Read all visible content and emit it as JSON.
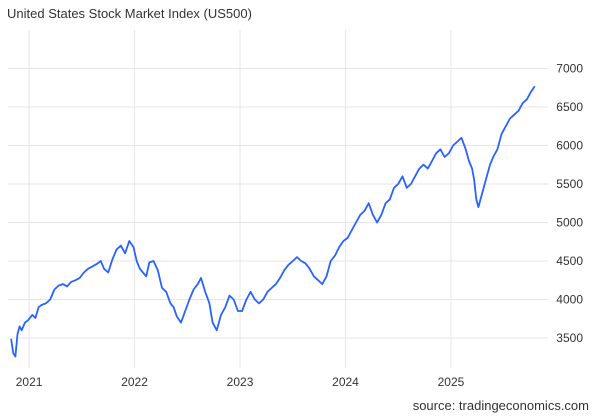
{
  "title": "United States Stock Market Index (US500)",
  "source": "source: tradingeconomics.com",
  "colors": {
    "line": "#2962ff",
    "grid": "#e6e6e6",
    "text": "#333333"
  },
  "chart_data": {
    "type": "line",
    "title": "United States Stock Market Index (US500)",
    "xlabel": "",
    "ylabel": "",
    "xlim": [
      2020.8,
      2025.92
    ],
    "ylim": [
      3110,
      7500
    ],
    "x_ticks": [
      2021,
      2022,
      2023,
      2024,
      2025
    ],
    "x_tick_labels": [
      "2021",
      "2022",
      "2023",
      "2024",
      "2025"
    ],
    "y_ticks": [
      3500,
      4000,
      4500,
      5000,
      5500,
      6000,
      6500,
      7000
    ],
    "y_tick_labels": [
      "3500",
      "4000",
      "4500",
      "5000",
      "5500",
      "6000",
      "6500",
      "7000"
    ],
    "y_axis_position": "right",
    "grid": true,
    "series": [
      {
        "x": [
          2020.83,
          2020.85,
          2020.87,
          2020.89,
          2020.91,
          2020.93,
          2020.96,
          2020.99,
          2021.03,
          2021.06,
          2021.09,
          2021.12,
          2021.16,
          2021.2,
          2021.24,
          2021.28,
          2021.32,
          2021.36,
          2021.4,
          2021.44,
          2021.48,
          2021.52,
          2021.56,
          2021.6,
          2021.64,
          2021.68,
          2021.71,
          2021.75,
          2021.79,
          2021.83,
          2021.87,
          2021.91,
          2021.95,
          2021.99,
          2022.02,
          2022.05,
          2022.08,
          2022.11,
          2022.14,
          2022.18,
          2022.22,
          2022.26,
          2022.3,
          2022.34,
          2022.37,
          2022.4,
          2022.44,
          2022.48,
          2022.52,
          2022.56,
          2022.6,
          2022.63,
          2022.67,
          2022.71,
          2022.74,
          2022.78,
          2022.82,
          2022.86,
          2022.9,
          2022.94,
          2022.98,
          2023.02,
          2023.06,
          2023.1,
          2023.14,
          2023.18,
          2023.22,
          2023.26,
          2023.3,
          2023.34,
          2023.38,
          2023.42,
          2023.46,
          2023.5,
          2023.54,
          2023.58,
          2023.62,
          2023.66,
          2023.7,
          2023.74,
          2023.78,
          2023.82,
          2023.86,
          2023.9,
          2023.94,
          2023.98,
          2024.02,
          2024.06,
          2024.1,
          2024.14,
          2024.18,
          2024.22,
          2024.26,
          2024.3,
          2024.34,
          2024.38,
          2024.42,
          2024.46,
          2024.5,
          2024.54,
          2024.58,
          2024.62,
          2024.66,
          2024.7,
          2024.74,
          2024.78,
          2024.82,
          2024.86,
          2024.9,
          2024.94,
          2024.98,
          2025.02,
          2025.06,
          2025.1,
          2025.14,
          2025.17,
          2025.2,
          2025.22,
          2025.24,
          2025.26,
          2025.28,
          2025.31,
          2025.34,
          2025.37,
          2025.4,
          2025.44,
          2025.48,
          2025.52,
          2025.56,
          2025.6,
          2025.64,
          2025.68,
          2025.72,
          2025.76,
          2025.79
        ],
        "values": [
          3480,
          3300,
          3260,
          3550,
          3650,
          3600,
          3700,
          3730,
          3800,
          3760,
          3900,
          3930,
          3950,
          4000,
          4130,
          4180,
          4200,
          4170,
          4230,
          4250,
          4280,
          4350,
          4400,
          4430,
          4460,
          4500,
          4400,
          4350,
          4520,
          4650,
          4700,
          4600,
          4760,
          4680,
          4500,
          4400,
          4350,
          4300,
          4480,
          4500,
          4380,
          4150,
          4100,
          3950,
          3900,
          3780,
          3700,
          3850,
          4000,
          4130,
          4200,
          4280,
          4100,
          3950,
          3700,
          3600,
          3800,
          3900,
          4050,
          4000,
          3850,
          3850,
          4000,
          4100,
          4000,
          3950,
          4000,
          4100,
          4150,
          4200,
          4280,
          4380,
          4450,
          4500,
          4550,
          4500,
          4470,
          4400,
          4300,
          4250,
          4200,
          4300,
          4500,
          4570,
          4680,
          4760,
          4800,
          4900,
          5000,
          5100,
          5150,
          5250,
          5100,
          5000,
          5100,
          5250,
          5300,
          5450,
          5500,
          5600,
          5450,
          5500,
          5600,
          5700,
          5750,
          5700,
          5800,
          5900,
          5950,
          5850,
          5900,
          6000,
          6050,
          6100,
          5950,
          5800,
          5700,
          5550,
          5300,
          5200,
          5300,
          5450,
          5600,
          5750,
          5850,
          5950,
          6150,
          6250,
          6350,
          6400,
          6450,
          6550,
          6600,
          6700,
          6760
        ]
      }
    ]
  }
}
